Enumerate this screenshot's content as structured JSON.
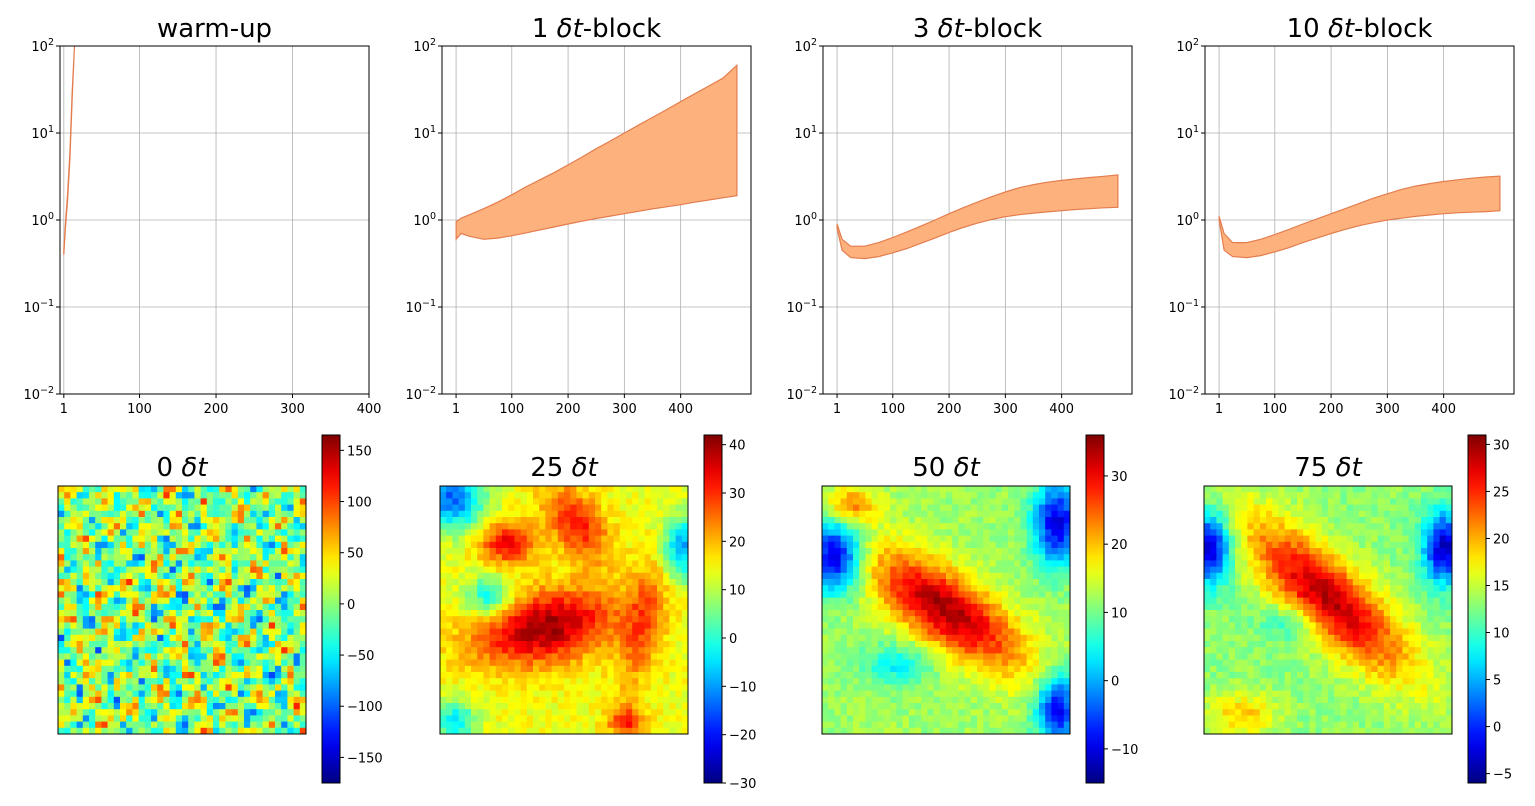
{
  "chart_data": [
    {
      "type": "area",
      "title_plain": "warm-up",
      "title_pre": "",
      "title_italic": "",
      "title_post": "",
      "yscale": "log",
      "ylim": [
        0.01,
        100
      ],
      "y_ticks": [
        {
          "value": 0.01,
          "base": "10",
          "exp": "−2"
        },
        {
          "value": 0.1,
          "base": "10",
          "exp": "−1"
        },
        {
          "value": 1,
          "base": "10",
          "exp": "0"
        },
        {
          "value": 10,
          "base": "10",
          "exp": "1"
        },
        {
          "value": 100,
          "base": "10",
          "exp": "2"
        }
      ],
      "xlim": [
        -4,
        400
      ],
      "x_ticks": [
        {
          "value": 1,
          "label": "1"
        },
        {
          "value": 100,
          "label": "100"
        },
        {
          "value": 200,
          "label": "200"
        },
        {
          "value": 300,
          "label": "300"
        },
        {
          "value": 400,
          "label": "400"
        }
      ],
      "grid": true,
      "series": [
        {
          "name": "upper",
          "x": [
            1,
            3,
            6,
            9,
            12,
            15
          ],
          "y": [
            0.45,
            0.9,
            2,
            6,
            30,
            100
          ]
        },
        {
          "name": "lower",
          "x": [
            1,
            3,
            6,
            9,
            12,
            15
          ],
          "y": [
            0.4,
            0.8,
            1.7,
            5,
            25,
            100
          ]
        }
      ]
    },
    {
      "type": "area",
      "title_plain": "",
      "title_pre": "1 ",
      "title_italic": "δt",
      "title_post": "-block",
      "yscale": "log",
      "ylim": [
        0.01,
        100
      ],
      "y_ticks": [
        {
          "value": 0.01,
          "base": "10",
          "exp": "−2"
        },
        {
          "value": 0.1,
          "base": "10",
          "exp": "−1"
        },
        {
          "value": 1,
          "base": "10",
          "exp": "0"
        },
        {
          "value": 10,
          "base": "10",
          "exp": "1"
        },
        {
          "value": 100,
          "base": "10",
          "exp": "2"
        }
      ],
      "xlim": [
        -24,
        525
      ],
      "x_ticks": [
        {
          "value": 1,
          "label": "1"
        },
        {
          "value": 100,
          "label": "100"
        },
        {
          "value": 200,
          "label": "200"
        },
        {
          "value": 300,
          "label": "300"
        },
        {
          "value": 400,
          "label": "400"
        }
      ],
      "grid": true,
      "series": [
        {
          "name": "upper",
          "x": [
            1,
            10,
            25,
            50,
            75,
            100,
            125,
            150,
            175,
            200,
            225,
            250,
            275,
            300,
            325,
            350,
            375,
            400,
            425,
            450,
            475,
            500
          ],
          "y": [
            0.95,
            1.05,
            1.15,
            1.35,
            1.6,
            1.95,
            2.4,
            2.9,
            3.5,
            4.3,
            5.3,
            6.6,
            8.1,
            10.0,
            12.3,
            15.1,
            18.6,
            22.9,
            28.2,
            34.7,
            42.7,
            60
          ]
        },
        {
          "name": "lower",
          "x": [
            1,
            10,
            25,
            50,
            75,
            100,
            125,
            150,
            175,
            200,
            225,
            250,
            275,
            300,
            325,
            350,
            375,
            400,
            425,
            450,
            475,
            500
          ],
          "y": [
            0.6,
            0.7,
            0.65,
            0.6,
            0.62,
            0.66,
            0.71,
            0.77,
            0.83,
            0.9,
            0.97,
            1.04,
            1.11,
            1.18,
            1.26,
            1.34,
            1.42,
            1.5,
            1.6,
            1.7,
            1.8,
            1.9
          ]
        }
      ]
    },
    {
      "type": "area",
      "title_plain": "",
      "title_pre": "3 ",
      "title_italic": "δt",
      "title_post": "-block",
      "yscale": "log",
      "ylim": [
        0.01,
        100
      ],
      "y_ticks": [
        {
          "value": 0.01,
          "base": "10",
          "exp": "−2"
        },
        {
          "value": 0.1,
          "base": "10",
          "exp": "−1"
        },
        {
          "value": 1,
          "base": "10",
          "exp": "0"
        },
        {
          "value": 10,
          "base": "10",
          "exp": "1"
        },
        {
          "value": 100,
          "base": "10",
          "exp": "2"
        }
      ],
      "xlim": [
        -24,
        525
      ],
      "x_ticks": [
        {
          "value": 1,
          "label": "1"
        },
        {
          "value": 100,
          "label": "100"
        },
        {
          "value": 200,
          "label": "200"
        },
        {
          "value": 300,
          "label": "300"
        },
        {
          "value": 400,
          "label": "400"
        }
      ],
      "grid": true,
      "series": [
        {
          "name": "upper",
          "x": [
            1,
            10,
            25,
            50,
            75,
            100,
            125,
            150,
            175,
            200,
            225,
            250,
            275,
            300,
            325,
            350,
            375,
            400,
            425,
            450,
            475,
            500
          ],
          "y": [
            0.9,
            0.6,
            0.5,
            0.5,
            0.55,
            0.63,
            0.73,
            0.85,
            1.0,
            1.18,
            1.38,
            1.6,
            1.85,
            2.1,
            2.35,
            2.55,
            2.72,
            2.85,
            2.97,
            3.08,
            3.18,
            3.3
          ]
        },
        {
          "name": "lower",
          "x": [
            1,
            10,
            25,
            50,
            75,
            100,
            125,
            150,
            175,
            200,
            225,
            250,
            275,
            300,
            325,
            350,
            375,
            400,
            425,
            450,
            475,
            500
          ],
          "y": [
            0.8,
            0.45,
            0.37,
            0.36,
            0.38,
            0.42,
            0.47,
            0.54,
            0.62,
            0.72,
            0.82,
            0.92,
            1.01,
            1.09,
            1.15,
            1.2,
            1.24,
            1.28,
            1.32,
            1.35,
            1.38,
            1.4
          ]
        }
      ]
    },
    {
      "type": "area",
      "title_plain": "",
      "title_pre": "10 ",
      "title_italic": "δt",
      "title_post": "-block",
      "yscale": "log",
      "ylim": [
        0.01,
        100
      ],
      "y_ticks": [
        {
          "value": 0.01,
          "base": "10",
          "exp": "−2"
        },
        {
          "value": 0.1,
          "base": "10",
          "exp": "−1"
        },
        {
          "value": 1,
          "base": "10",
          "exp": "0"
        },
        {
          "value": 10,
          "base": "10",
          "exp": "1"
        },
        {
          "value": 100,
          "base": "10",
          "exp": "2"
        }
      ],
      "xlim": [
        -24,
        525
      ],
      "x_ticks": [
        {
          "value": 1,
          "label": "1"
        },
        {
          "value": 100,
          "label": "100"
        },
        {
          "value": 200,
          "label": "200"
        },
        {
          "value": 300,
          "label": "300"
        },
        {
          "value": 400,
          "label": "400"
        }
      ],
      "grid": true,
      "series": [
        {
          "name": "upper",
          "x": [
            1,
            10,
            25,
            50,
            75,
            100,
            125,
            150,
            175,
            200,
            225,
            250,
            275,
            300,
            325,
            350,
            375,
            400,
            425,
            450,
            475,
            500
          ],
          "y": [
            1.1,
            0.7,
            0.55,
            0.55,
            0.6,
            0.68,
            0.78,
            0.9,
            1.03,
            1.18,
            1.35,
            1.55,
            1.78,
            2.0,
            2.25,
            2.45,
            2.62,
            2.77,
            2.9,
            3.02,
            3.12,
            3.2
          ]
        },
        {
          "name": "lower",
          "x": [
            1,
            10,
            25,
            50,
            75,
            100,
            125,
            150,
            175,
            200,
            225,
            250,
            275,
            300,
            325,
            350,
            375,
            400,
            425,
            450,
            475,
            500
          ],
          "y": [
            1.0,
            0.45,
            0.38,
            0.37,
            0.39,
            0.43,
            0.48,
            0.55,
            0.62,
            0.7,
            0.78,
            0.86,
            0.93,
            1.0,
            1.05,
            1.1,
            1.14,
            1.18,
            1.21,
            1.23,
            1.25,
            1.28
          ]
        }
      ]
    },
    {
      "type": "heatmap",
      "title_pre": "0 ",
      "title_italic": "δt",
      "title_post": "",
      "grid_size": 40,
      "colormap": "jet",
      "vmin": -175,
      "vmax": 165,
      "colorbar_ticks": [
        {
          "value": 150,
          "label": "150"
        },
        {
          "value": 100,
          "label": "100"
        },
        {
          "value": 50,
          "label": "50"
        },
        {
          "value": 0,
          "label": "0"
        },
        {
          "value": -50,
          "label": "−50"
        },
        {
          "value": -100,
          "label": "−100"
        },
        {
          "value": -150,
          "label": "−150"
        }
      ],
      "field": "noise",
      "field_mean": 0,
      "field_amp": 115,
      "blobs": []
    },
    {
      "type": "heatmap",
      "title_pre": "25 ",
      "title_italic": "δt",
      "title_post": "",
      "grid_size": 40,
      "colormap": "jet",
      "vmin": -30,
      "vmax": 42,
      "colorbar_ticks": [
        {
          "value": 40,
          "label": "40"
        },
        {
          "value": 30,
          "label": "30"
        },
        {
          "value": 20,
          "label": "20"
        },
        {
          "value": 10,
          "label": "10"
        },
        {
          "value": 0,
          "label": "0"
        },
        {
          "value": -10,
          "label": "−10"
        },
        {
          "value": -20,
          "label": "−20"
        },
        {
          "value": -30,
          "label": "−30"
        }
      ],
      "field": "smooth",
      "field_base": 14,
      "noise_amp": 3,
      "blobs": [
        {
          "cx": 0.42,
          "cy": 0.57,
          "sx": 0.2,
          "sy": 0.1,
          "angle": -0.2,
          "amp": 26
        },
        {
          "cx": 0.27,
          "cy": 0.23,
          "sx": 0.08,
          "sy": 0.06,
          "angle": 0.0,
          "amp": 20
        },
        {
          "cx": 0.55,
          "cy": 0.15,
          "sx": 0.07,
          "sy": 0.12,
          "angle": -0.6,
          "amp": 18
        },
        {
          "cx": 0.82,
          "cy": 0.55,
          "sx": 0.06,
          "sy": 0.2,
          "angle": 0.2,
          "amp": 12
        },
        {
          "cx": 0.05,
          "cy": 0.05,
          "sx": 0.09,
          "sy": 0.09,
          "angle": 0.0,
          "amp": -28
        },
        {
          "cx": 0.98,
          "cy": 0.25,
          "sx": 0.06,
          "sy": 0.09,
          "angle": 0.0,
          "amp": -24
        },
        {
          "cx": 0.2,
          "cy": 0.45,
          "sx": 0.07,
          "sy": 0.06,
          "angle": 0.0,
          "amp": -18
        },
        {
          "cx": 0.06,
          "cy": 0.95,
          "sx": 0.06,
          "sy": 0.06,
          "angle": 0.0,
          "amp": -18
        },
        {
          "cx": 0.75,
          "cy": 0.95,
          "sx": 0.05,
          "sy": 0.04,
          "angle": 0.0,
          "amp": 18
        }
      ]
    },
    {
      "type": "heatmap",
      "title_pre": "50 ",
      "title_italic": "δt",
      "title_post": "",
      "grid_size": 40,
      "colormap": "jet",
      "vmin": -15,
      "vmax": 36,
      "colorbar_ticks": [
        {
          "value": 30,
          "label": "30"
        },
        {
          "value": 20,
          "label": "20"
        },
        {
          "value": 10,
          "label": "10"
        },
        {
          "value": 0,
          "label": "0"
        },
        {
          "value": -10,
          "label": "−10"
        }
      ],
      "field": "smooth",
      "field_base": 12,
      "noise_amp": 2,
      "blobs": [
        {
          "cx": 0.5,
          "cy": 0.5,
          "sx": 0.26,
          "sy": 0.1,
          "angle": 0.6,
          "amp": 22
        },
        {
          "cx": 0.12,
          "cy": 0.08,
          "sx": 0.07,
          "sy": 0.05,
          "angle": 0.0,
          "amp": 12
        },
        {
          "cx": 0.05,
          "cy": 0.28,
          "sx": 0.08,
          "sy": 0.1,
          "angle": 0.0,
          "amp": -24
        },
        {
          "cx": 0.95,
          "cy": 0.15,
          "sx": 0.07,
          "sy": 0.12,
          "angle": 0.0,
          "amp": -22
        },
        {
          "cx": 0.95,
          "cy": 0.9,
          "sx": 0.06,
          "sy": 0.1,
          "angle": 0.0,
          "amp": -22
        },
        {
          "cx": 0.3,
          "cy": 0.72,
          "sx": 0.1,
          "sy": 0.06,
          "angle": 0.0,
          "amp": -8
        }
      ]
    },
    {
      "type": "heatmap",
      "title_pre": "75 ",
      "title_italic": "δt",
      "title_post": "",
      "grid_size": 40,
      "colormap": "jet",
      "vmin": -6,
      "vmax": 31,
      "colorbar_ticks": [
        {
          "value": 30,
          "label": "30"
        },
        {
          "value": 25,
          "label": "25"
        },
        {
          "value": 20,
          "label": "20"
        },
        {
          "value": 15,
          "label": "15"
        },
        {
          "value": 10,
          "label": "10"
        },
        {
          "value": 5,
          "label": "5"
        },
        {
          "value": 0,
          "label": "0"
        },
        {
          "value": -5,
          "label": "−5"
        }
      ],
      "field": "smooth",
      "field_base": 13,
      "noise_amp": 1.5,
      "blobs": [
        {
          "cx": 0.5,
          "cy": 0.45,
          "sx": 0.3,
          "sy": 0.1,
          "angle": 0.75,
          "amp": 16
        },
        {
          "cx": 0.15,
          "cy": 0.92,
          "sx": 0.1,
          "sy": 0.06,
          "angle": 0.0,
          "amp": 6
        },
        {
          "cx": 0.02,
          "cy": 0.25,
          "sx": 0.06,
          "sy": 0.1,
          "angle": 0.0,
          "amp": -17
        },
        {
          "cx": 0.97,
          "cy": 0.25,
          "sx": 0.06,
          "sy": 0.1,
          "angle": 0.0,
          "amp": -17
        },
        {
          "cx": 0.35,
          "cy": 0.55,
          "sx": 0.08,
          "sy": 0.05,
          "angle": 0.0,
          "amp": -5
        }
      ]
    }
  ]
}
